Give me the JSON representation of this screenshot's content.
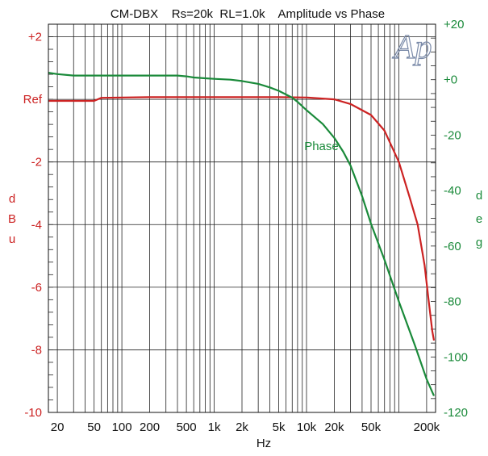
{
  "chart_data": {
    "type": "line",
    "title": "CM-DBX    Rs=20k  RL=1.0k    Amplitude vs Phase",
    "xlabel": "Hz",
    "xscale": "log",
    "xlim": [
      16,
      250000
    ],
    "x_tick_labels": [
      {
        "value": 20,
        "label": "20"
      },
      {
        "value": 50,
        "label": "50"
      },
      {
        "value": 100,
        "label": "100"
      },
      {
        "value": 200,
        "label": "200"
      },
      {
        "value": 500,
        "label": "500"
      },
      {
        "value": 1000,
        "label": "1k"
      },
      {
        "value": 2000,
        "label": "2k"
      },
      {
        "value": 5000,
        "label": "5k"
      },
      {
        "value": 10000,
        "label": "10k"
      },
      {
        "value": 20000,
        "label": "20k"
      },
      {
        "value": 50000,
        "label": "50k"
      },
      {
        "value": 200000,
        "label": "200k"
      }
    ],
    "y_left": {
      "label_letters": [
        "d",
        "B",
        "u"
      ],
      "lim": [
        -10,
        2.4
      ],
      "ticks": [
        {
          "value": 2,
          "label": "+2"
        },
        {
          "value": 0,
          "label": "Ref"
        },
        {
          "value": -2,
          "label": "-2"
        },
        {
          "value": -4,
          "label": "-4"
        },
        {
          "value": -6,
          "label": "-6"
        },
        {
          "value": -8,
          "label": "-8"
        },
        {
          "value": -10,
          "label": "-10"
        }
      ]
    },
    "y_right": {
      "label_letters": [
        "d",
        "e",
        "g"
      ],
      "lim": [
        -120,
        20
      ],
      "ticks": [
        {
          "value": 20,
          "label": "+20"
        },
        {
          "value": 0,
          "label": "+0"
        },
        {
          "value": -20,
          "label": "-20"
        },
        {
          "value": -40,
          "label": "-40"
        },
        {
          "value": -60,
          "label": "-60"
        },
        {
          "value": -80,
          "label": "-80"
        },
        {
          "value": -100,
          "label": "-100"
        },
        {
          "value": -120,
          "label": "-120"
        }
      ]
    },
    "grid": true,
    "series": [
      {
        "name": "",
        "axis": "left",
        "color": "#cc2222",
        "x": [
          10,
          50,
          60,
          200,
          1000,
          5000,
          10000,
          20000,
          30000,
          50000,
          70000,
          100000,
          130000,
          160000,
          190000,
          210000,
          230000,
          240000
        ],
        "y": [
          -0.05,
          -0.05,
          0.05,
          0.07,
          0.07,
          0.07,
          0.06,
          0.0,
          -0.15,
          -0.5,
          -1.0,
          -2.0,
          -3.1,
          -4.0,
          -5.3,
          -6.4,
          -7.4,
          -7.7
        ]
      },
      {
        "name": "Phase",
        "axis": "right",
        "color": "#1a8a3a",
        "x": [
          10,
          20,
          30,
          80,
          200,
          300,
          400,
          500,
          600,
          800,
          1000,
          1500,
          2000,
          3000,
          4000,
          5000,
          7000,
          8000,
          10000,
          15000,
          20000,
          25000,
          30000,
          40000,
          50000,
          70000,
          100000,
          150000,
          200000,
          240000
        ],
        "y": [
          3.5,
          2,
          1.5,
          1.5,
          1.5,
          1.5,
          1.5,
          1.2,
          0.8,
          0.5,
          0.3,
          0,
          -0.5,
          -1.5,
          -2.8,
          -4,
          -6.5,
          -8,
          -11,
          -16,
          -21,
          -26,
          -31,
          -42,
          -52,
          -65,
          -80,
          -96,
          -108,
          -114
        ]
      }
    ],
    "annotations": [
      {
        "text": "Phase",
        "x": 14500,
        "y_right": -24
      }
    ],
    "logo": "Ap"
  }
}
